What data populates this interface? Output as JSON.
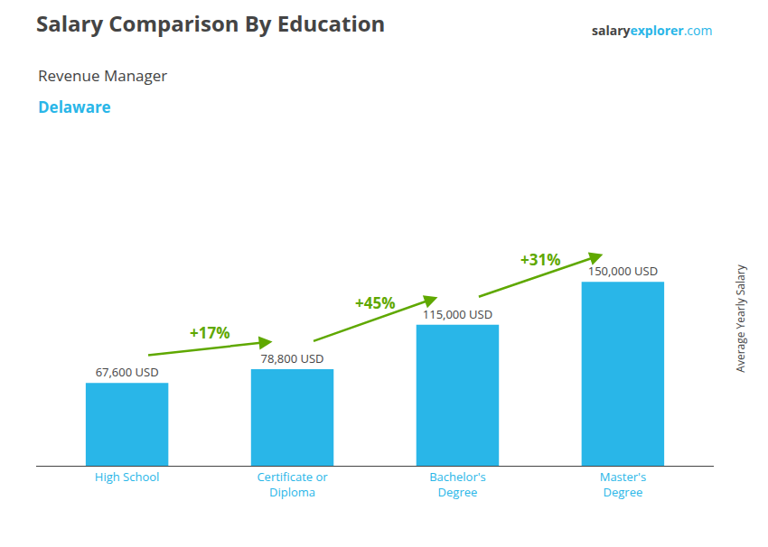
{
  "chart_data": {
    "type": "bar",
    "title": "Salary Comparison By Education",
    "subtitle": "Revenue Manager",
    "location": "Delaware",
    "website": [
      "salary",
      "explorer",
      ".com"
    ],
    "ylabel": "Average Yearly Salary",
    "categories": [
      "High School",
      "Certificate or\nDiploma",
      "Bachelor's\nDegree",
      "Master's\nDegree"
    ],
    "values": [
      67600,
      78800,
      115000,
      150000
    ],
    "value_labels": [
      "67,600 USD",
      "78,800 USD",
      "115,000 USD",
      "150,000 USD"
    ],
    "data_labels": true,
    "annotations": [
      "+17%",
      "+45%",
      "+31%"
    ],
    "color": "#29b6e8",
    "ylim": [
      0,
      240000
    ],
    "grid": false,
    "tick_labels": "x"
  }
}
